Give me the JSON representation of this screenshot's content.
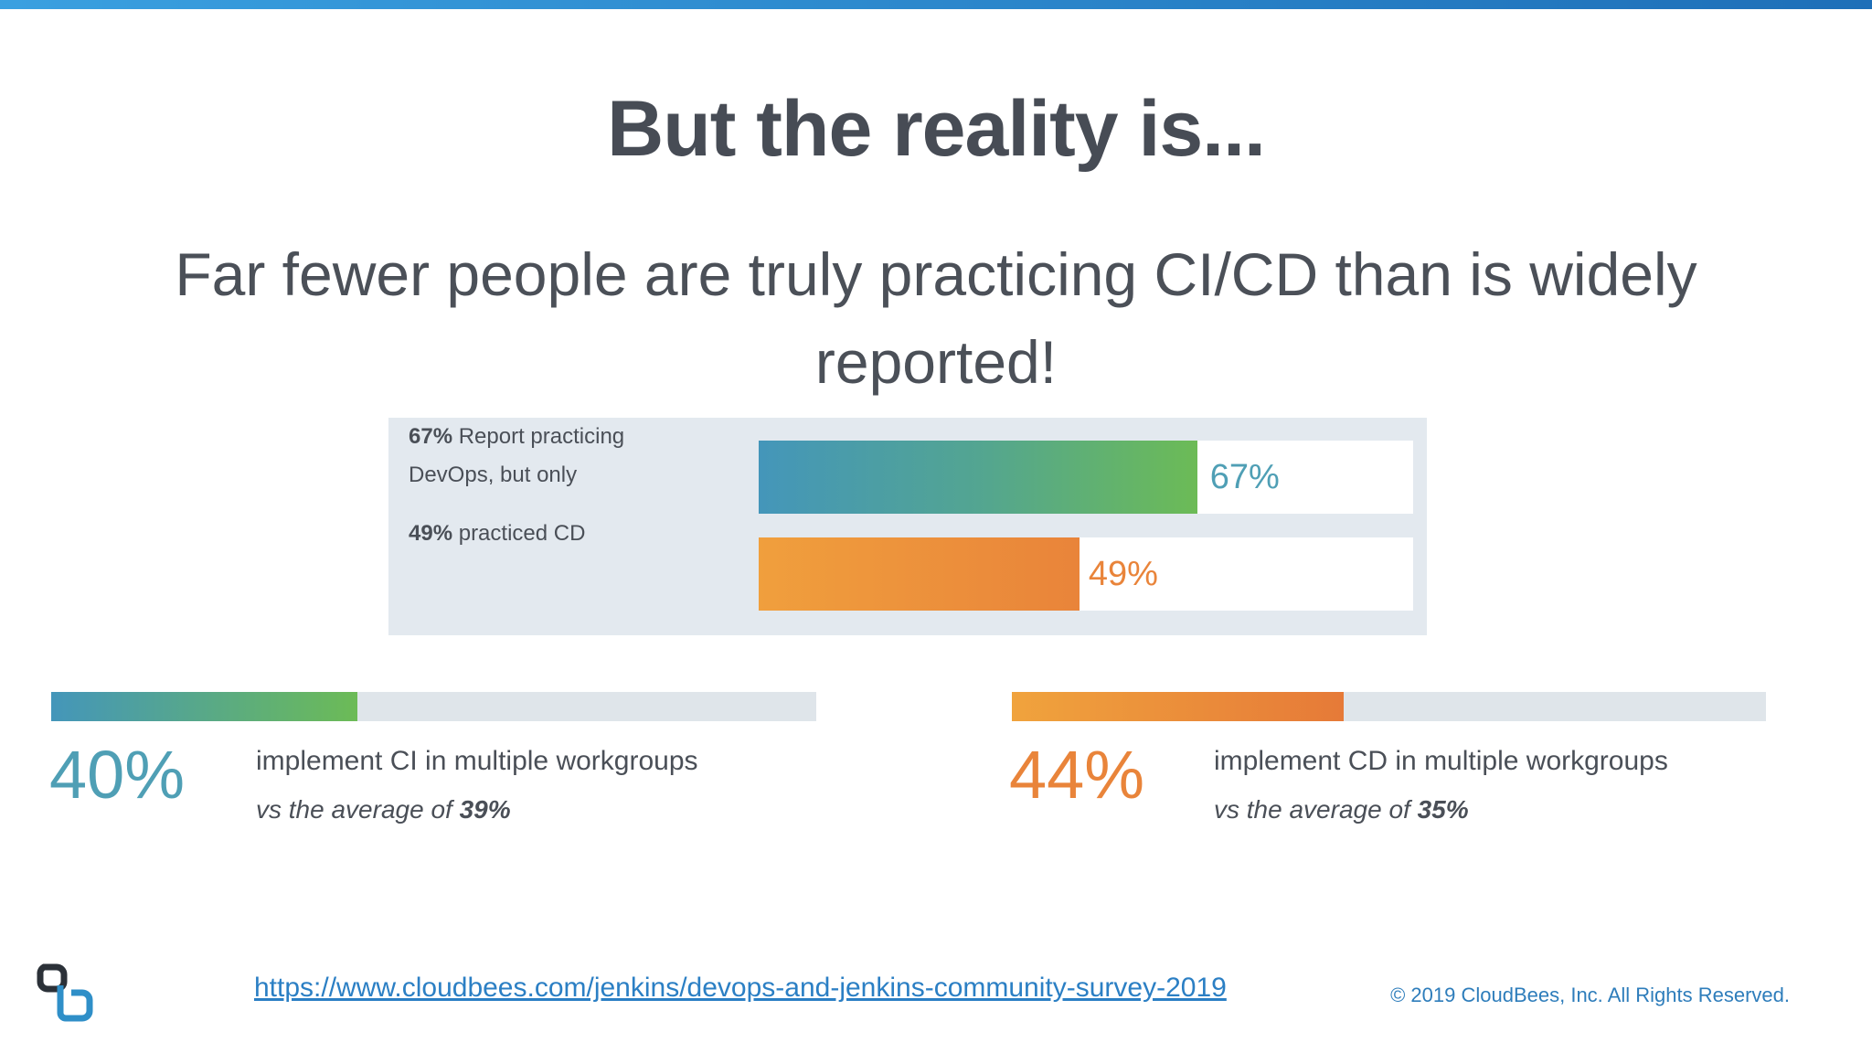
{
  "slide": {
    "title": "But the reality is...",
    "subtitle": "Far fewer people are truly practicing CI/CD than is widely reported!"
  },
  "panel": {
    "row1": {
      "bold": "67%",
      "text_a": " Report practicing",
      "text_b": "DevOps, but only",
      "value_label": "67%"
    },
    "row2": {
      "bold": "49%",
      "text": " practiced CD",
      "value_label": "49%"
    }
  },
  "stats": {
    "ci": {
      "pct": "40%",
      "line1": "implement CI in multiple workgroups",
      "line2_prefix": "vs the average of ",
      "line2_value": "39%"
    },
    "cd": {
      "pct": "44%",
      "line1": "implement CD in multiple workgroups",
      "line2_prefix": "vs the average of ",
      "line2_value": "35%"
    }
  },
  "footer": {
    "link": "https://www.cloudbees.com/jenkins/devops-and-jenkins-community-survey-2019",
    "copyright": "© 2019 CloudBees, Inc. All Rights Reserved."
  },
  "colors": {
    "teal": "#4f9fb5",
    "green": "#6cbb56",
    "orange": "#e9843a",
    "title": "#474c55",
    "link": "#2b7fc4"
  },
  "chart_data": [
    {
      "type": "bar",
      "orientation": "horizontal",
      "categories": [
        "67% Report practicing DevOps, but only",
        "49% practiced CD"
      ],
      "values": [
        67,
        49
      ],
      "data_labels": [
        "67%",
        "49%"
      ],
      "xlim": [
        0,
        100
      ]
    },
    {
      "type": "bar",
      "orientation": "horizontal",
      "categories": [
        "implement CI in multiple workgroups",
        "implement CD in multiple workgroups"
      ],
      "values": [
        40,
        44
      ],
      "data_labels": [
        "40%",
        "44%"
      ],
      "xlim": [
        0,
        100
      ]
    }
  ]
}
